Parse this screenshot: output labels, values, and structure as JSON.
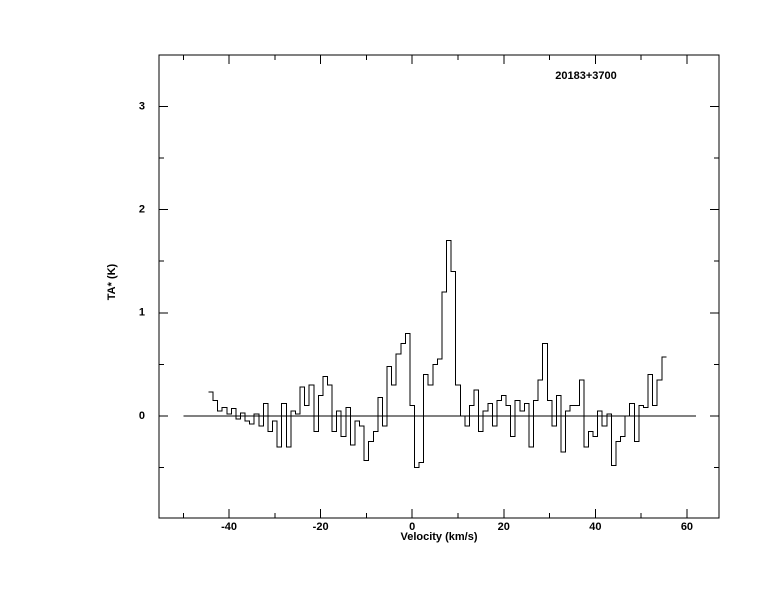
{
  "chart_data": {
    "type": "step",
    "annotation": "20183+3700",
    "xlabel": "Velocity (km/s)",
    "ylabel": "TA* (K)",
    "xlim": [
      -55.3,
      67
    ],
    "ylim": [
      -0.99,
      3.5
    ],
    "xticks": [
      -40,
      -20,
      0,
      20,
      40,
      60
    ],
    "xticks_minor": [
      -50,
      -30,
      -10,
      10,
      30,
      50
    ],
    "yticks": [
      0,
      1,
      2,
      3
    ],
    "yticks_minor": [
      -0.5,
      0.5,
      1.5,
      2.5,
      3.5
    ],
    "baseline": {
      "y": 0,
      "x": [
        -50,
        62
      ]
    },
    "color": "#000000",
    "x": [
      -44,
      -43,
      -42,
      -41,
      -40,
      -39,
      -38,
      -37,
      -36,
      -35,
      -34,
      -33,
      -32,
      -31,
      -30,
      -29,
      -28,
      -27,
      -26,
      -25,
      -24,
      -23,
      -22,
      -21,
      -20,
      -19,
      -18,
      -17,
      -16,
      -15,
      -14,
      -13,
      -12,
      -11,
      -10,
      -9,
      -8,
      -7,
      -6,
      -5,
      -4,
      -3,
      -2,
      -1,
      0,
      1,
      2,
      3,
      4,
      5,
      6,
      7,
      8,
      9,
      10,
      11,
      12,
      13,
      14,
      15,
      16,
      17,
      18,
      19,
      20,
      21,
      22,
      23,
      24,
      25,
      26,
      27,
      28,
      29,
      30,
      31,
      32,
      33,
      34,
      35,
      36,
      37,
      38,
      39,
      40,
      41,
      42,
      43,
      44,
      45,
      46,
      47,
      48,
      49,
      50,
      51,
      52,
      53,
      54,
      55
    ],
    "values": [
      0.23,
      0.15,
      0.05,
      0.08,
      0.02,
      0.07,
      -0.03,
      0.03,
      -0.05,
      -0.08,
      0.02,
      -0.1,
      0.12,
      -0.15,
      -0.05,
      -0.3,
      0.12,
      -0.3,
      0.05,
      0.02,
      0.28,
      0.1,
      0.3,
      -0.15,
      0.2,
      0.38,
      0.3,
      -0.15,
      0.05,
      -0.2,
      0.08,
      -0.28,
      -0.05,
      -0.1,
      -0.43,
      -0.25,
      -0.15,
      0.18,
      -0.1,
      0.48,
      0.3,
      0.6,
      0.7,
      0.8,
      0.1,
      -0.5,
      -0.45,
      0.4,
      0.3,
      0.5,
      0.55,
      1.2,
      1.7,
      1.4,
      0.3,
      0,
      -0.1,
      0.1,
      0.25,
      -0.15,
      0.05,
      0.12,
      -0.1,
      0.15,
      0.2,
      0.1,
      -0.2,
      0.15,
      0.05,
      0.12,
      -0.3,
      0.15,
      0.35,
      0.7,
      0.15,
      -0.1,
      0.2,
      -0.35,
      0.05,
      0.1,
      0.1,
      0.35,
      -0.3,
      -0.15,
      -0.2,
      0.05,
      -0.1,
      0.02,
      -0.48,
      -0.25,
      -0.2,
      0,
      0.12,
      -0.25,
      0.1,
      0.08,
      0.4,
      0.1,
      0.35,
      0.57
    ]
  }
}
